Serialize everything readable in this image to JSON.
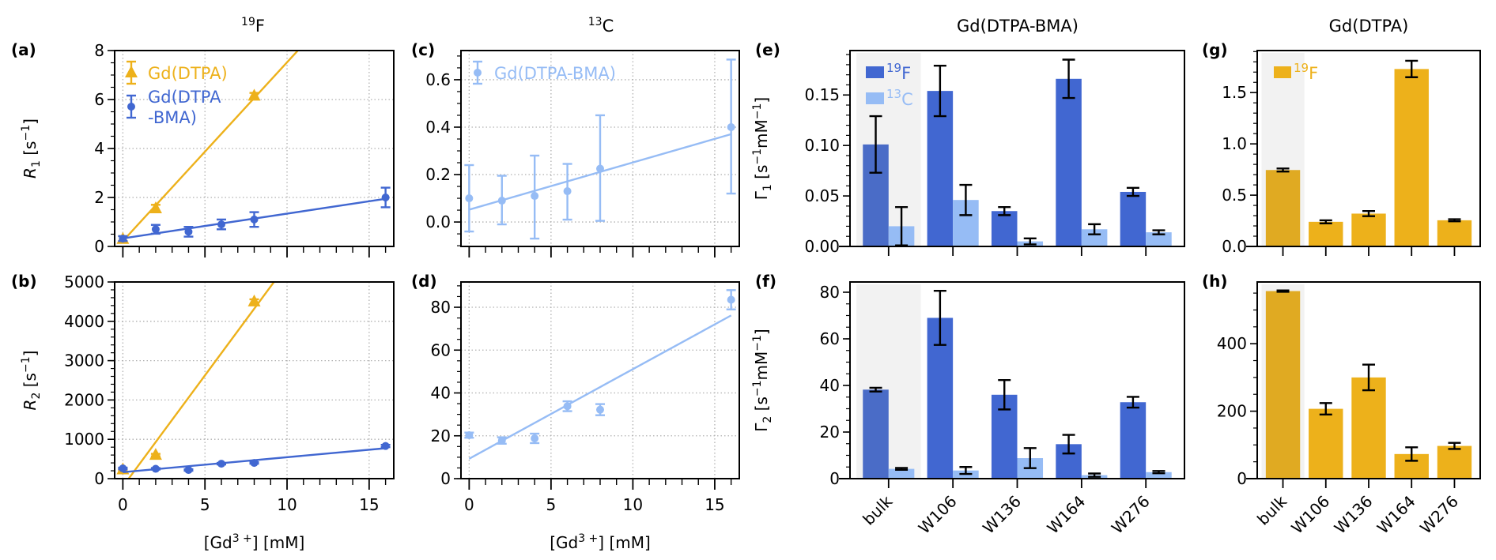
{
  "colors": {
    "gd_dtpa": "#edb11b",
    "gd_dtpa_bulk": "#e0aa22",
    "f19_blue": "#4167d1",
    "f19_blue_bulk": "#4a6cc7",
    "c13_light": "#96bcf5",
    "highlight_bg": "#f2f2f2",
    "grid": "#b0b0b0",
    "errorbar": "#000000"
  },
  "column_titles": {
    "col1": {
      "base": "F",
      "sup": "19"
    },
    "col2": {
      "base": "C",
      "sup": "13"
    },
    "col3": "Gd(DTPA-BMA)",
    "col4": "Gd(DTPA)"
  },
  "chart_data": [
    {
      "id": "a",
      "panel_label": "(a)",
      "type": "scatter",
      "title": "19F",
      "xlabel": "[Gd3+] [mM]",
      "ylabel": "R1 [s-1]",
      "ylabel_parts": {
        "sym": "R",
        "sub": "1",
        "unit_pre": " [s",
        "unit_sup": "−1",
        "unit_post": "]"
      },
      "xlim": [
        -0.5,
        16.5
      ],
      "ylim": [
        0,
        8
      ],
      "xticks": [
        0,
        5,
        10,
        15
      ],
      "xticklabels_shown": false,
      "yticks": [
        0,
        2,
        4,
        6,
        8
      ],
      "grid": true,
      "legend": "top-left",
      "series": [
        {
          "name": "Gd(DTPA)",
          "marker": "triangle",
          "color_key": "gd_dtpa",
          "x": [
            0,
            2,
            8
          ],
          "y": [
            0.3,
            1.55,
            6.15
          ],
          "yerr": [
            0.12,
            0.15,
            0.12
          ],
          "fit": {
            "slope": 0.73,
            "intercept": 0.22
          }
        },
        {
          "name": "Gd(DTPA\n-BMA)",
          "marker": "circle",
          "color_key": "f19_blue",
          "x": [
            0,
            2,
            4,
            6,
            8,
            16
          ],
          "y": [
            0.32,
            0.7,
            0.6,
            0.9,
            1.1,
            2.0
          ],
          "yerr": [
            0.1,
            0.18,
            0.2,
            0.2,
            0.3,
            0.4
          ],
          "fit": {
            "slope": 0.101,
            "intercept": 0.33
          }
        }
      ]
    },
    {
      "id": "b",
      "panel_label": "(b)",
      "type": "scatter",
      "xlabel": "[Gd3+] [mM]",
      "ylabel": "R2 [s-1]",
      "ylabel_parts": {
        "sym": "R",
        "sub": "2",
        "unit_pre": " [s",
        "unit_sup": "−1",
        "unit_post": "]"
      },
      "xlim": [
        -0.5,
        16.5
      ],
      "ylim": [
        0,
        5000
      ],
      "xticks": [
        0,
        5,
        10,
        15
      ],
      "yticks": [
        0,
        1000,
        2000,
        3000,
        4000,
        5000
      ],
      "grid": true,
      "series": [
        {
          "name": "Gd(DTPA)",
          "marker": "triangle",
          "color_key": "gd_dtpa",
          "x": [
            0,
            2,
            8
          ],
          "y": [
            230,
            600,
            4500
          ],
          "yerr": [
            20,
            30,
            60
          ],
          "fit": {
            "slope": 565,
            "intercept": -200
          }
        },
        {
          "name": "Gd(DTPA-BMA)",
          "marker": "circle",
          "color_key": "f19_blue",
          "x": [
            0,
            2,
            4,
            6,
            8,
            16
          ],
          "y": [
            260,
            250,
            220,
            380,
            400,
            830
          ],
          "yerr": [
            20,
            20,
            20,
            20,
            20,
            30
          ],
          "fit": {
            "slope": 38,
            "intercept": 165
          }
        }
      ]
    },
    {
      "id": "c",
      "panel_label": "(c)",
      "type": "scatter",
      "title": "13C",
      "xlabel": "[Gd3+] [mM]",
      "ylabel": "",
      "xlim": [
        -0.5,
        16.5
      ],
      "ylim": [
        -0.103,
        0.723
      ],
      "xticks": [
        0,
        5,
        10,
        15
      ],
      "xticklabels_shown": false,
      "yticks": [
        0.0,
        0.2,
        0.4,
        0.6
      ],
      "yticklabels": [
        "0.0",
        "0.2",
        "0.4",
        "0.6"
      ],
      "grid": true,
      "legend": "top-left",
      "series": [
        {
          "name": "Gd(DTPA-BMA)",
          "marker": "circle",
          "color_key": "c13_light",
          "x": [
            0,
            2,
            4,
            6,
            8,
            16
          ],
          "y": [
            0.1,
            0.09,
            0.11,
            0.13,
            0.225,
            0.4
          ],
          "yerr_low": [
            0.14,
            0.1,
            0.18,
            0.12,
            0.22,
            0.28
          ],
          "yerr_high": [
            0.14,
            0.105,
            0.17,
            0.115,
            0.225,
            0.285
          ],
          "fit": {
            "slope": 0.0199,
            "intercept": 0.052
          }
        }
      ]
    },
    {
      "id": "d",
      "panel_label": "(d)",
      "type": "scatter",
      "xlabel": "[Gd3+] [mM]",
      "ylabel": "",
      "xlim": [
        -0.5,
        16.5
      ],
      "ylim": [
        0,
        91.8
      ],
      "xticks": [
        0,
        5,
        10,
        15
      ],
      "yticks": [
        0,
        20,
        40,
        60,
        80
      ],
      "grid": true,
      "series": [
        {
          "name": "Gd(DTPA-BMA)",
          "marker": "circle",
          "color_key": "c13_light",
          "x": [
            0,
            2,
            4,
            6,
            8,
            16
          ],
          "y": [
            20.3,
            17.8,
            18.8,
            33.8,
            32.2,
            83.5
          ],
          "yerr": [
            1.2,
            1.5,
            2.2,
            2.3,
            2.6,
            4.5
          ],
          "fit": {
            "slope": 4.18,
            "intercept": 9.3
          }
        }
      ]
    },
    {
      "id": "e",
      "panel_label": "(e)",
      "type": "bar",
      "title": "Gd(DTPA-BMA)",
      "ylabel": "Γ1 [s-1 mM-1]",
      "ylabel_parts": {
        "sym": "Γ",
        "sub": "1",
        "unit_pre": " [s",
        "unit_sup": "−1",
        "unit_mid": "mM",
        "unit_sup2": "−1",
        "unit_post": "]"
      },
      "categories": [
        "bulk",
        "W106",
        "W136",
        "W164",
        "W276"
      ],
      "xticklabels_shown": false,
      "ylim": [
        0,
        0.194
      ],
      "yticks": [
        0.0,
        0.05,
        0.1,
        0.15
      ],
      "yticklabels": [
        "0.00",
        "0.05",
        "0.10",
        "0.15"
      ],
      "highlight_category": "bulk",
      "legend": "top-left",
      "series": [
        {
          "name": "19F",
          "legend_sup": "19",
          "legend_base": "F",
          "color_key": "f19_blue",
          "values": [
            0.101,
            0.154,
            0.035,
            0.166,
            0.054
          ],
          "err": [
            0.028,
            0.025,
            0.004,
            0.019,
            0.004
          ]
        },
        {
          "name": "13C",
          "legend_sup": "13",
          "legend_base": "C",
          "color_key": "c13_light",
          "values": [
            0.02,
            0.046,
            0.005,
            0.017,
            0.014
          ],
          "err": [
            0.019,
            0.015,
            0.003,
            0.005,
            0.002
          ]
        }
      ]
    },
    {
      "id": "f",
      "panel_label": "(f)",
      "type": "bar",
      "ylabel": "Γ2 [s-1 mM-1]",
      "ylabel_parts": {
        "sym": "Γ",
        "sub": "2",
        "unit_pre": " [s",
        "unit_sup": "−1",
        "unit_mid": "mM",
        "unit_sup2": "−1",
        "unit_post": "]"
      },
      "categories": [
        "bulk",
        "W106",
        "W136",
        "W164",
        "W276"
      ],
      "ylim": [
        0,
        84.4
      ],
      "yticks": [
        0,
        20,
        40,
        60,
        80
      ],
      "highlight_category": "bulk",
      "series": [
        {
          "name": "19F",
          "color_key": "f19_blue",
          "values": [
            38.2,
            69.0,
            36.0,
            14.8,
            32.8
          ],
          "err": [
            0.8,
            11.6,
            6.3,
            4.0,
            2.3
          ]
        },
        {
          "name": "13C",
          "color_key": "c13_light",
          "values": [
            4.2,
            3.5,
            8.8,
            1.5,
            2.8
          ],
          "err": [
            0.4,
            1.5,
            4.3,
            0.7,
            0.5
          ]
        }
      ]
    },
    {
      "id": "g",
      "panel_label": "(g)",
      "type": "bar",
      "title": "Gd(DTPA)",
      "ylabel": "",
      "categories": [
        "bulk",
        "W106",
        "W136",
        "W164",
        "W276"
      ],
      "xticklabels_shown": false,
      "ylim": [
        0,
        1.91
      ],
      "yticks": [
        0.0,
        0.5,
        1.0,
        1.5
      ],
      "yticklabels": [
        "0.0",
        "0.5",
        "1.0",
        "1.5"
      ],
      "highlight_category": "bulk",
      "legend": "top-left",
      "series": [
        {
          "name": "19F",
          "legend_sup": "19",
          "legend_base": "F",
          "color_key": "gd_dtpa",
          "values": [
            0.745,
            0.24,
            0.32,
            1.73,
            0.255
          ],
          "err": [
            0.015,
            0.015,
            0.025,
            0.08,
            0.01
          ]
        }
      ]
    },
    {
      "id": "h",
      "panel_label": "(h)",
      "type": "bar",
      "ylabel": "",
      "categories": [
        "bulk",
        "W106",
        "W136",
        "W164",
        "W276"
      ],
      "ylim": [
        0,
        583
      ],
      "yticks": [
        0,
        200,
        400
      ],
      "highlight_category": "bulk",
      "series": [
        {
          "name": "19F",
          "color_key": "gd_dtpa",
          "values": [
            556,
            207,
            300,
            73,
            97
          ],
          "err": [
            2,
            17,
            38,
            20,
            9
          ]
        }
      ]
    }
  ]
}
